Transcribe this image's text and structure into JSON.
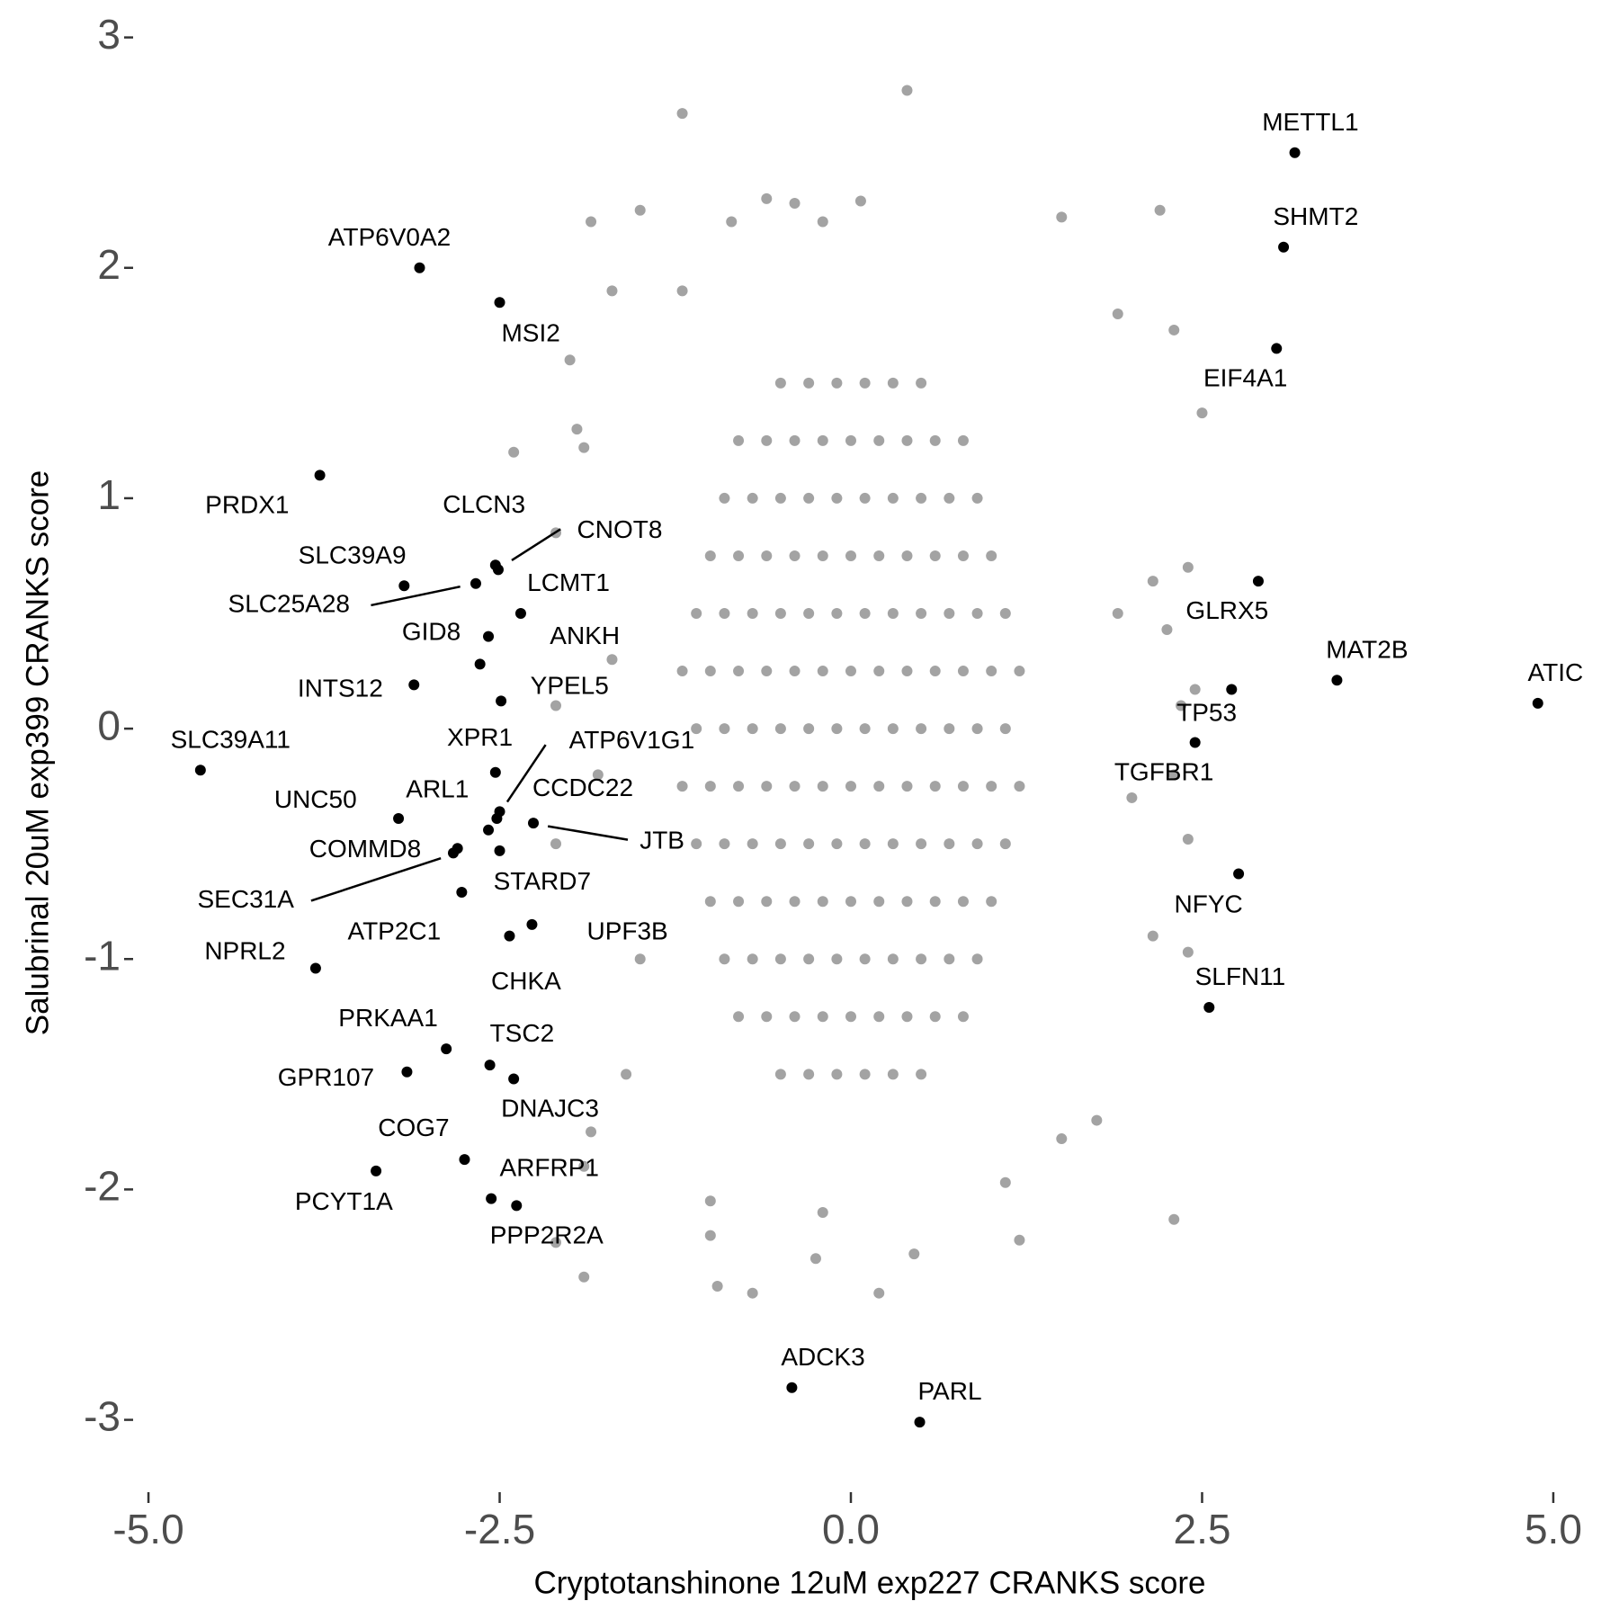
{
  "chart_data": {
    "type": "scatter",
    "x_label": "Cryptotanshinone 12uM exp227 CRANKS score",
    "y_label": "Salubrinal 20uM exp399 CRANKS score",
    "xlim": [
      -5.25,
      5.25
    ],
    "ylim": [
      -3.15,
      3.1
    ],
    "xticks": [
      {
        "value": -5,
        "label": "-5.0"
      },
      {
        "value": -2.5,
        "label": "-2.5"
      },
      {
        "value": 0,
        "label": "0.0"
      },
      {
        "value": 2.5,
        "label": "2.5"
      },
      {
        "value": 5,
        "label": "5.0"
      }
    ],
    "yticks": [
      -3,
      -2,
      -1,
      0,
      1,
      2,
      3
    ],
    "grid": false,
    "series": [
      {
        "color": "#a3a3a3",
        "x": [
          -1.2,
          0.4,
          -0.6,
          -0.4,
          0.07,
          -0.85,
          -0.2,
          -1.85,
          -1.5,
          2.2,
          1.5,
          -1.7,
          -1.2,
          2.3,
          -2.0,
          2.5,
          1.9,
          -1.9,
          -2.1,
          2.4,
          2.15,
          2.25,
          1.9,
          2.45,
          2.35,
          2.3,
          2.4,
          2.0,
          2.4,
          2.15,
          1.75,
          1.5,
          2.3,
          1.1,
          1.2,
          0.45,
          0.2,
          -0.7,
          -0.95,
          -1.0,
          -0.2,
          -0.25,
          -1.0,
          -1.9,
          -2.1,
          -1.85,
          -1.6,
          -1.9,
          -1.5,
          -2.1,
          -1.8,
          -1.7,
          -2.1,
          -1.95,
          -2.4,
          -0.5,
          -0.3,
          -0.1,
          0.1,
          0.3,
          0.5,
          -0.8,
          -0.6,
          -0.4,
          -0.2,
          0,
          0.2,
          0.4,
          0.6,
          0.8,
          -0.9,
          -0.7,
          -0.5,
          -0.3,
          -0.1,
          0.1,
          0.3,
          0.5,
          0.7,
          0.9,
          -1,
          -0.8,
          -0.6,
          -0.4,
          -0.2,
          0,
          0.2,
          0.4,
          0.6,
          0.8,
          1,
          -1.1,
          -0.9,
          -0.7,
          -0.5,
          -0.3,
          -0.1,
          0.1,
          0.3,
          0.5,
          0.7,
          0.9,
          1.1,
          -1.2,
          -1,
          -0.8,
          -0.6,
          -0.4,
          -0.2,
          0,
          0.2,
          0.4,
          0.6,
          0.8,
          1,
          1.2,
          -1.1,
          -0.9,
          -0.7,
          -0.5,
          -0.3,
          -0.1,
          0.1,
          0.3,
          0.5,
          0.7,
          0.9,
          1.1,
          -1.2,
          -1,
          -0.8,
          -0.6,
          -0.4,
          -0.2,
          0,
          0.2,
          0.4,
          0.6,
          0.8,
          1,
          1.2,
          -1.1,
          -0.9,
          -0.7,
          -0.5,
          -0.3,
          -0.1,
          0.1,
          0.3,
          0.5,
          0.7,
          0.9,
          1.1,
          -1,
          -0.8,
          -0.6,
          -0.4,
          -0.2,
          0,
          0.2,
          0.4,
          0.6,
          0.8,
          1,
          -0.9,
          -0.7,
          -0.5,
          -0.3,
          -0.1,
          0.1,
          0.3,
          0.5,
          0.7,
          0.9,
          -0.8,
          -0.6,
          -0.4,
          -0.2,
          0,
          0.2,
          0.4,
          0.6,
          0.8,
          -0.5,
          -0.3,
          -0.1,
          0.1,
          0.3,
          0.5
        ],
        "y": [
          2.67,
          2.77,
          2.3,
          2.28,
          2.29,
          2.2,
          2.2,
          2.2,
          2.25,
          2.25,
          2.22,
          1.9,
          1.9,
          1.73,
          1.6,
          1.37,
          1.8,
          1.22,
          0.85,
          0.7,
          0.64,
          0.43,
          0.5,
          0.17,
          0.1,
          -0.2,
          -0.48,
          -0.3,
          -0.97,
          -0.9,
          -1.7,
          -1.78,
          -2.13,
          -1.97,
          -2.22,
          -2.28,
          -2.45,
          -2.45,
          -2.42,
          -2.2,
          -2.1,
          -2.3,
          -2.05,
          -2.38,
          -2.23,
          -1.75,
          -1.5,
          -1.9,
          -1.0,
          -0.5,
          -0.2,
          0.3,
          0.1,
          1.3,
          1.2,
          1.5,
          1.5,
          1.5,
          1.5,
          1.5,
          1.5,
          1.25,
          1.25,
          1.25,
          1.25,
          1.25,
          1.25,
          1.25,
          1.25,
          1.25,
          1,
          1,
          1,
          1,
          1,
          1,
          1,
          1,
          1,
          1,
          0.75,
          0.75,
          0.75,
          0.75,
          0.75,
          0.75,
          0.75,
          0.75,
          0.75,
          0.75,
          0.75,
          0.5,
          0.5,
          0.5,
          0.5,
          0.5,
          0.5,
          0.5,
          0.5,
          0.5,
          0.5,
          0.5,
          0.5,
          0.25,
          0.25,
          0.25,
          0.25,
          0.25,
          0.25,
          0.25,
          0.25,
          0.25,
          0.25,
          0.25,
          0.25,
          0.25,
          0,
          0,
          0,
          0,
          0,
          0,
          0,
          0,
          0,
          0,
          0,
          0,
          -0.25,
          -0.25,
          -0.25,
          -0.25,
          -0.25,
          -0.25,
          -0.25,
          -0.25,
          -0.25,
          -0.25,
          -0.25,
          -0.25,
          -0.25,
          -0.5,
          -0.5,
          -0.5,
          -0.5,
          -0.5,
          -0.5,
          -0.5,
          -0.5,
          -0.5,
          -0.5,
          -0.5,
          -0.5,
          -0.75,
          -0.75,
          -0.75,
          -0.75,
          -0.75,
          -0.75,
          -0.75,
          -0.75,
          -0.75,
          -0.75,
          -0.75,
          -1,
          -1,
          -1,
          -1,
          -1,
          -1,
          -1,
          -1,
          -1,
          -1,
          -1.25,
          -1.25,
          -1.25,
          -1.25,
          -1.25,
          -1.25,
          -1.25,
          -1.25,
          -1.25,
          -1.5,
          -1.5,
          -1.5,
          -1.5,
          -1.5,
          -1.5
        ]
      },
      {
        "color": "#000000",
        "labels": [
          "METTL1",
          "SHMT2",
          "EIF4A1",
          "ATP6V0A2",
          "MSI2",
          "PRDX1",
          "CLCN3",
          "CNOT8",
          "SLC39A9",
          "SLC25A28",
          "LCMT1",
          "GID8",
          "ANKH",
          "INTS12",
          "YPEL5",
          "SLC39A11",
          "XPR1",
          "ATP6V1G1",
          "ARL1",
          "CCDC22",
          "JTB",
          "UNC50",
          "COMMD8",
          "SEC31A",
          "STARD7",
          "ATP2C1",
          "UPF3B",
          "CHKA",
          "NPRL2",
          "PRKAA1",
          "GPR107",
          "TSC2",
          "DNAJC3",
          "COG7",
          "PCYT1A",
          "ARFRP1",
          "PPP2R2A",
          "GLRX5",
          "MAT2B",
          "ATIC",
          "TP53",
          "TGFBR1",
          "NFYC",
          "SLFN11",
          "ADCK3",
          "PARL"
        ],
        "x": [
          3.16,
          3.08,
          3.03,
          -3.07,
          -2.5,
          -3.78,
          -2.53,
          -2.51,
          -3.18,
          -2.67,
          -2.35,
          -2.58,
          -2.64,
          -3.11,
          -2.49,
          -4.63,
          -2.53,
          -2.52,
          -2.5,
          -2.58,
          -2.26,
          -3.22,
          -2.8,
          -2.83,
          -2.5,
          -2.77,
          -2.27,
          -2.43,
          -3.81,
          -2.88,
          -3.16,
          -2.57,
          -2.4,
          -2.75,
          -3.38,
          -2.56,
          -2.38,
          2.9,
          3.46,
          4.89,
          2.71,
          2.45,
          2.76,
          2.55,
          -0.42,
          0.49
        ],
        "y": [
          2.5,
          2.09,
          1.65,
          2.0,
          1.85,
          1.1,
          0.71,
          0.69,
          0.62,
          0.63,
          0.5,
          0.4,
          0.28,
          0.19,
          0.12,
          -0.18,
          -0.19,
          -0.39,
          -0.36,
          -0.44,
          -0.41,
          -0.39,
          -0.52,
          -0.54,
          -0.53,
          -0.71,
          -0.85,
          -0.9,
          -1.04,
          -1.39,
          -1.49,
          -1.46,
          -1.52,
          -1.87,
          -1.92,
          -2.04,
          -2.07,
          0.64,
          0.21,
          0.11,
          0.17,
          -0.06,
          -0.63,
          -1.21,
          -2.86,
          -3.01
        ]
      }
    ]
  }
}
